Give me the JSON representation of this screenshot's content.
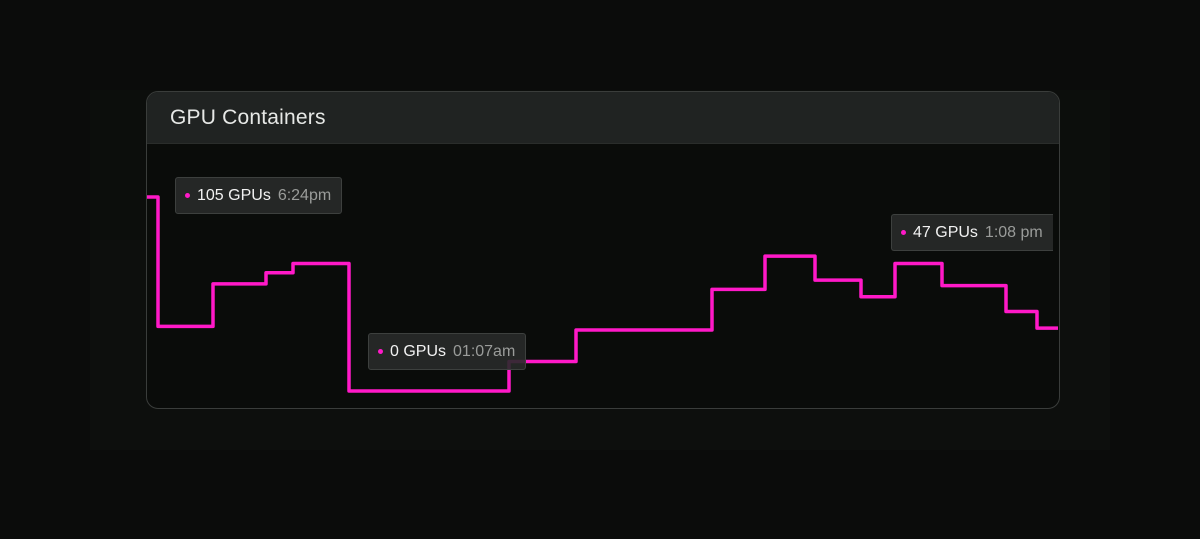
{
  "card": {
    "title": "GPU Containers"
  },
  "chart_data": {
    "type": "line",
    "step": true,
    "title": "GPU Containers",
    "values": [
      105,
      35,
      58,
      64,
      69,
      0,
      16,
      33,
      55,
      73,
      60,
      51,
      69,
      57,
      43,
      34
    ],
    "ylim": [
      0,
      105
    ],
    "grid": false,
    "color": "#ff19c8",
    "annotations": [
      {
        "value": "105 GPUs",
        "time": "6:24pm"
      },
      {
        "value": "0 GPUs",
        "time": "01:07am"
      },
      {
        "value": "47 GPUs",
        "time": "1:08 pm"
      }
    ]
  }
}
